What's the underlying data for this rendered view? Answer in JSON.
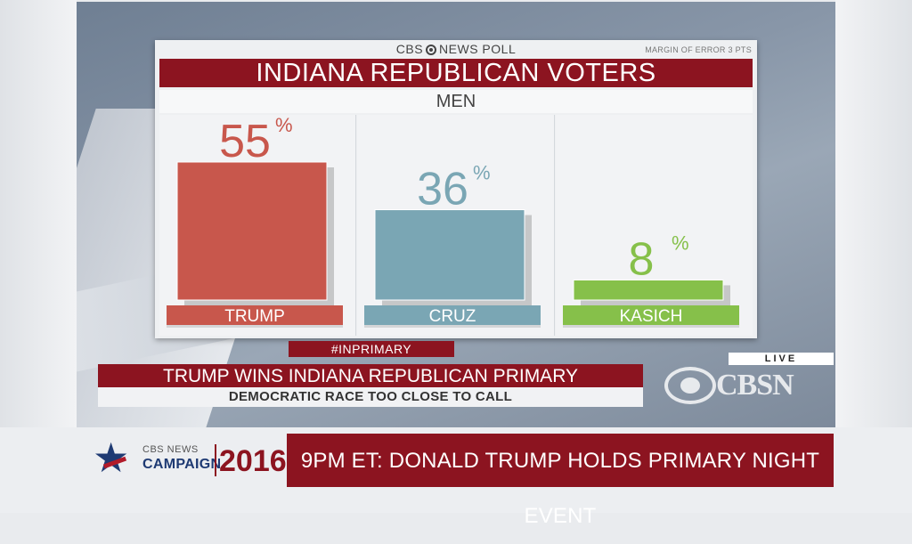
{
  "poll": {
    "brand_left": "CBS",
    "brand_right": "NEWS POLL",
    "margin_of_error": "MARGIN OF ERROR 3 PTS",
    "title": "INDIANA REPUBLICAN VOTERS",
    "subtitle": "MEN"
  },
  "chart_data": {
    "type": "bar",
    "title": "INDIANA REPUBLICAN VOTERS",
    "subtitle": "MEN",
    "categories": [
      "TRUMP",
      "CRUZ",
      "KASICH"
    ],
    "values": [
      55,
      36,
      8
    ],
    "value_suffix": "%",
    "colors": [
      "#c8574c",
      "#7aa6b4",
      "#86c04a"
    ],
    "label_colors": [
      "#c8574c",
      "#7aa6b4",
      "#86c04a"
    ],
    "ylim": [
      0,
      60
    ],
    "xlabel": "",
    "ylabel": ""
  },
  "lower_third": {
    "hashtag": "#INPRIMARY",
    "headline": "TRUMP WINS INDIANA REPUBLICAN PRIMARY",
    "subheadline": "DEMOCRATIC RACE TOO CLOSE TO CALL",
    "live_label": "LIVE",
    "network_logo": "CBSN"
  },
  "ticker": {
    "cbs_news": "CBS NEWS",
    "campaign": "CAMPAIGN",
    "year": "2016",
    "message": "9PM ET: DONALD TRUMP HOLDS PRIMARY NIGHT EVENT"
  },
  "colors": {
    "accent_red": "#8c1420",
    "navy": "#1e3a73"
  }
}
